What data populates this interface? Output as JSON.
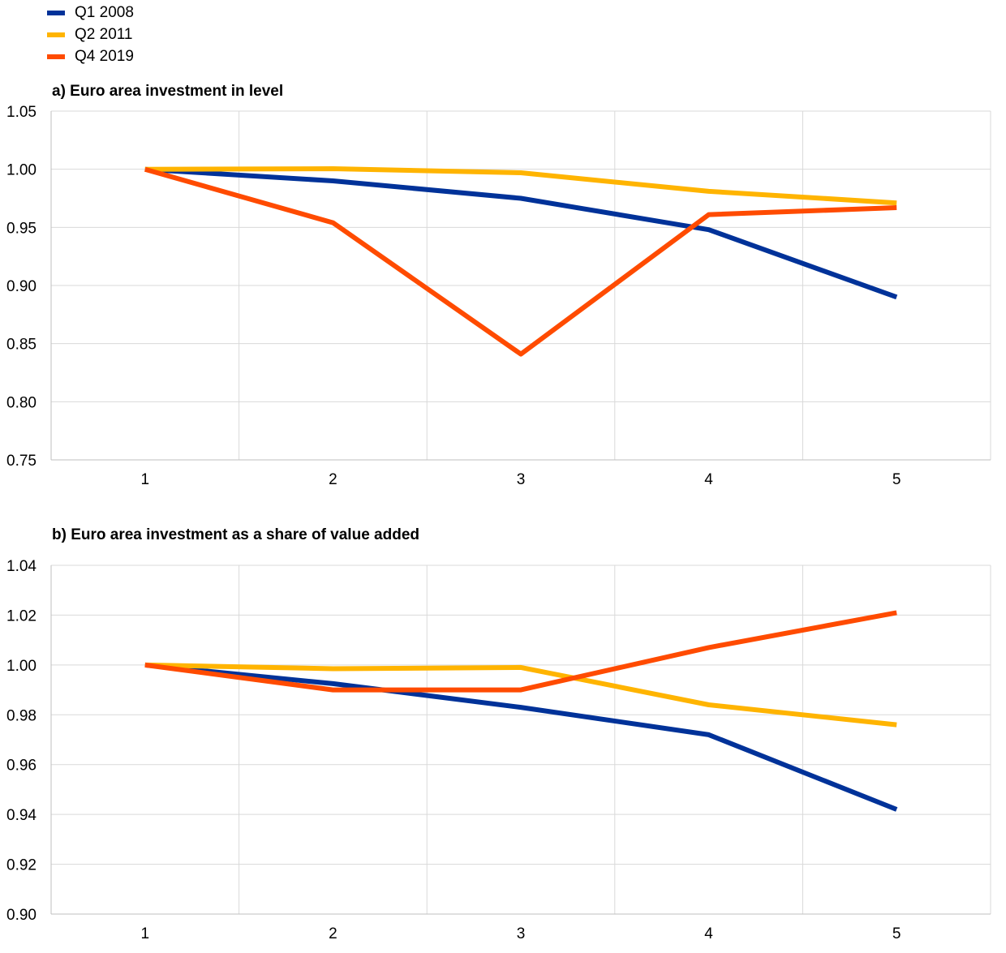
{
  "legend": [
    {
      "label": "Q1 2008",
      "color": "#003299"
    },
    {
      "label": "Q2 2011",
      "color": "#FFB400"
    },
    {
      "label": "Q4 2019",
      "color": "#FF4B00"
    }
  ],
  "chart_data": [
    {
      "type": "line",
      "title": "a) Euro area investment in level",
      "x": [
        1,
        2,
        3,
        4,
        5
      ],
      "ylim": [
        0.75,
        1.05
      ],
      "yticks": [
        "0.75",
        "0.80",
        "0.85",
        "0.90",
        "0.95",
        "1.00",
        "1.05"
      ],
      "xticks": [
        "1",
        "2",
        "3",
        "4",
        "5"
      ],
      "grid": true,
      "series": [
        {
          "name": "Q1 2008",
          "color": "#003299",
          "values": [
            1.0,
            0.99,
            0.975,
            0.948,
            0.89
          ]
        },
        {
          "name": "Q2 2011",
          "color": "#FFB400",
          "values": [
            1.0,
            1.0005,
            0.997,
            0.981,
            0.971
          ]
        },
        {
          "name": "Q4 2019",
          "color": "#FF4B00",
          "values": [
            1.0,
            0.954,
            0.841,
            0.961,
            0.967
          ]
        }
      ]
    },
    {
      "type": "line",
      "title": "b) Euro area investment as a share of value added",
      "x": [
        1,
        2,
        3,
        4,
        5
      ],
      "ylim": [
        0.9,
        1.04
      ],
      "yticks": [
        "0.90",
        "0.92",
        "0.94",
        "0.96",
        "0.98",
        "1.00",
        "1.02",
        "1.04"
      ],
      "xticks": [
        "1",
        "2",
        "3",
        "4",
        "5"
      ],
      "grid": true,
      "series": [
        {
          "name": "Q1 2008",
          "color": "#003299",
          "values": [
            1.0,
            0.9925,
            0.983,
            0.972,
            0.942
          ]
        },
        {
          "name": "Q2 2011",
          "color": "#FFB400",
          "values": [
            1.0,
            0.9985,
            0.999,
            0.984,
            0.976
          ]
        },
        {
          "name": "Q4 2019",
          "color": "#FF4B00",
          "values": [
            1.0,
            0.99,
            0.99,
            1.007,
            1.021
          ]
        }
      ]
    }
  ]
}
